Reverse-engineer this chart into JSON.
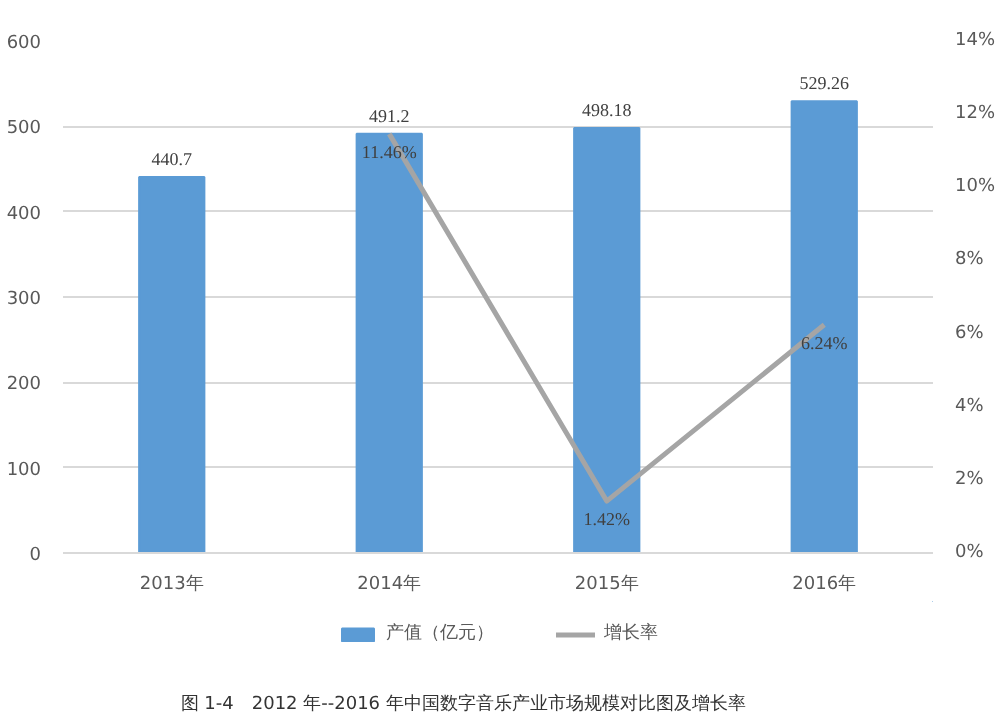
{
  "chart_data": {
    "type": "bar",
    "categories": [
      "2013年",
      "2014年",
      "2015年",
      "2016年"
    ],
    "series": [
      {
        "name": "产值（亿元）",
        "color": "#5b9bd5",
        "values": [
          440.7,
          491.2,
          498.18,
          529.26
        ],
        "value_labels": [
          "440.7",
          "491.2",
          "498.18",
          "529.26"
        ]
      },
      {
        "name": "增长率",
        "type": "line",
        "axis": "y2",
        "color": "#a5a5a5",
        "values": [
          null,
          11.46,
          1.42,
          6.24
        ],
        "value_labels": [
          null,
          "11.46%",
          "1.42%",
          "6.24%"
        ]
      }
    ],
    "ylim": [
      0,
      600
    ],
    "yticks": [
      0,
      100,
      200,
      300,
      400,
      500,
      600
    ],
    "y2lim": [
      0,
      14
    ],
    "y2ticks": [
      {
        "value": 0,
        "label": "0%"
      },
      {
        "value": 2,
        "label": "2%"
      },
      {
        "value": 4,
        "label": "4%"
      },
      {
        "value": 6,
        "label": "6%"
      },
      {
        "value": 8,
        "label": "8%"
      },
      {
        "value": 10,
        "label": "10%"
      },
      {
        "value": 12,
        "label": "12%"
      },
      {
        "value": 14,
        "label": "14%"
      }
    ],
    "grid": "y",
    "legend": "bottom",
    "annotations": [
      "图 1-4　2012 年--2016 年中国数字音乐产业市场规模对比图及增长率"
    ]
  }
}
